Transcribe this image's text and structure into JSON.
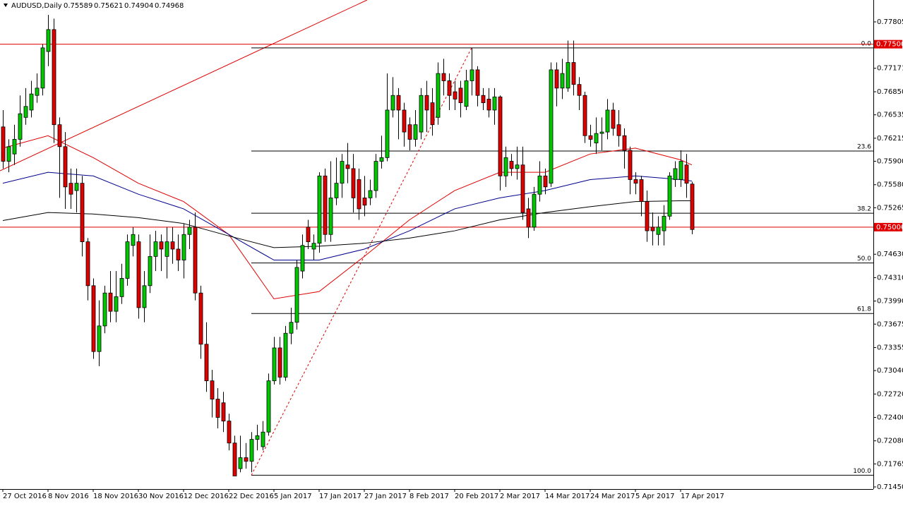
{
  "chart_data": {
    "type": "candlestick",
    "title": "AUDUSD,Daily",
    "quote": [
      0.75589,
      0.75621,
      0.74904,
      0.74968
    ],
    "up_color": "#00c800",
    "down_color": "#e00000",
    "categories": [
      "27 Oct 2016",
      null,
      null,
      null,
      null,
      null,
      null,
      null,
      "8 Nov 2016",
      null,
      null,
      null,
      null,
      null,
      null,
      null,
      "18 Nov 2016",
      null,
      null,
      null,
      null,
      null,
      null,
      null,
      "30 Nov 2016",
      null,
      null,
      null,
      null,
      null,
      null,
      null,
      "12 Dec 2016",
      null,
      null,
      null,
      null,
      null,
      null,
      null,
      "22 Dec 2016",
      null,
      null,
      null,
      null,
      null,
      null,
      null,
      "5 Jan 2017",
      null,
      null,
      null,
      null,
      null,
      null,
      null,
      "17 Jan 2017",
      null,
      null,
      null,
      null,
      null,
      null,
      null,
      "27 Jan 2017",
      null,
      null,
      null,
      null,
      null,
      null,
      null,
      "8 Feb 2017",
      null,
      null,
      null,
      null,
      null,
      null,
      null,
      "20 Feb 2017",
      null,
      null,
      null,
      null,
      null,
      null,
      null,
      "2 Mar 2017",
      null,
      null,
      null,
      null,
      null,
      null,
      null,
      "14 Mar 2017",
      null,
      null,
      null,
      null,
      null,
      null,
      null,
      "24 Mar 2017",
      null,
      null,
      null,
      null,
      null,
      null,
      null,
      "5 Apr 2017",
      null,
      null,
      null,
      null,
      null,
      null,
      null,
      "17 Apr 2017",
      null,
      null
    ],
    "open": [
      0.7637,
      0.759,
      0.76,
      0.762,
      0.765,
      0.766,
      0.768,
      0.769,
      0.774,
      0.777,
      0.764,
      0.761,
      0.756,
      0.755,
      0.756,
      0.748,
      0.742,
      0.733,
      0.7365,
      0.741,
      0.7385,
      0.7405,
      0.743,
      0.7475,
      0.748,
      0.739,
      0.742,
      0.746,
      0.748,
      0.746,
      0.748,
      0.747,
      0.7455,
      0.749,
      0.75,
      0.741,
      0.734,
      0.729,
      0.7265,
      0.726,
      0.7235,
      0.7205,
      0.717,
      0.7185,
      0.718,
      0.721,
      0.72,
      0.722,
      0.729,
      0.7335,
      0.7295,
      0.7355,
      0.737,
      0.744,
      0.75,
      0.747,
      0.7478,
      0.757,
      0.749,
      0.754,
      0.756,
      0.7585,
      0.758,
      0.7565,
      0.754,
      0.754,
      0.755,
      0.759,
      0.7595,
      0.766,
      0.768,
      0.766,
      0.764,
      0.762,
      0.763,
      0.768,
      0.767,
      0.765,
      0.771,
      0.77,
      0.7685,
      0.769,
      0.7665,
      0.77,
      0.7715,
      0.768,
      0.7675,
      0.766,
      0.7678,
      0.757,
      0.759,
      0.758,
      0.7585,
      0.7525,
      0.75,
      0.7545,
      0.757,
      0.756,
      0.7715,
      0.769,
      0.769,
      0.7725,
      0.7695,
      0.768,
      0.7625,
      0.7615,
      0.7628,
      0.763,
      0.766,
      0.764,
      0.7625,
      0.7605,
      0.7565,
      0.7565,
      0.7535,
      0.75,
      0.749,
      0.7495,
      0.7515,
      0.7565,
      0.7565,
      0.7585,
      0.75589
    ],
    "high": [
      0.766,
      0.762,
      0.764,
      0.768,
      0.769,
      0.77,
      0.771,
      0.775,
      0.779,
      0.7785,
      0.765,
      0.763,
      0.758,
      0.758,
      0.757,
      0.7485,
      0.743,
      0.74,
      0.742,
      0.744,
      0.744,
      0.745,
      0.749,
      0.75,
      0.749,
      0.744,
      0.749,
      0.7495,
      0.749,
      0.75,
      0.75,
      0.749,
      0.7505,
      0.751,
      0.752,
      0.742,
      0.737,
      0.7305,
      0.728,
      0.7275,
      0.7245,
      0.7215,
      0.7215,
      0.7205,
      0.722,
      0.723,
      0.7235,
      0.73,
      0.735,
      0.735,
      0.7365,
      0.739,
      0.7455,
      0.749,
      0.751,
      0.749,
      0.7575,
      0.758,
      0.759,
      0.7595,
      0.76,
      0.7615,
      0.76,
      0.758,
      0.757,
      0.7565,
      0.76,
      0.7625,
      0.771,
      0.7705,
      0.769,
      0.767,
      0.765,
      0.766,
      0.769,
      0.77,
      0.769,
      0.7725,
      0.773,
      0.771,
      0.77,
      0.77,
      0.7715,
      0.7745,
      0.772,
      0.769,
      0.769,
      0.769,
      0.768,
      0.761,
      0.76,
      0.761,
      0.761,
      0.754,
      0.7555,
      0.759,
      0.758,
      0.7725,
      0.7725,
      0.773,
      0.7755,
      0.7755,
      0.7705,
      0.7685,
      0.764,
      0.765,
      0.765,
      0.7675,
      0.767,
      0.766,
      0.7635,
      0.761,
      0.7575,
      0.757,
      0.755,
      0.752,
      0.7515,
      0.753,
      0.7575,
      0.759,
      0.7605,
      0.76,
      0.75621
    ],
    "low": [
      0.758,
      0.7575,
      0.7585,
      0.761,
      0.764,
      0.765,
      0.767,
      0.768,
      0.772,
      0.7615,
      0.754,
      0.7525,
      0.7525,
      0.752,
      0.746,
      0.74,
      0.732,
      0.731,
      0.7355,
      0.737,
      0.737,
      0.7395,
      0.742,
      0.746,
      0.7375,
      0.737,
      0.741,
      0.744,
      0.744,
      0.743,
      0.745,
      0.744,
      0.743,
      0.747,
      0.74,
      0.732,
      0.7275,
      0.724,
      0.7225,
      0.722,
      0.7195,
      0.716,
      0.7165,
      0.717,
      0.7165,
      0.7195,
      0.7195,
      0.7215,
      0.7285,
      0.7285,
      0.729,
      0.734,
      0.736,
      0.743,
      0.747,
      0.7455,
      0.7465,
      0.748,
      0.748,
      0.753,
      0.754,
      0.756,
      0.752,
      0.751,
      0.7515,
      0.753,
      0.754,
      0.758,
      0.759,
      0.765,
      0.762,
      0.761,
      0.7605,
      0.761,
      0.762,
      0.763,
      0.7625,
      0.764,
      0.768,
      0.766,
      0.766,
      0.765,
      0.766,
      0.768,
      0.7665,
      0.766,
      0.765,
      0.764,
      0.755,
      0.7555,
      0.757,
      0.7565,
      0.751,
      0.7485,
      0.7495,
      0.7535,
      0.7545,
      0.7555,
      0.7665,
      0.7675,
      0.7685,
      0.768,
      0.766,
      0.7615,
      0.761,
      0.76,
      0.7605,
      0.762,
      0.7625,
      0.761,
      0.758,
      0.7545,
      0.7545,
      0.7515,
      0.748,
      0.7475,
      0.7475,
      0.7475,
      0.751,
      0.7555,
      0.7555,
      0.754,
      0.74904
    ],
    "close": [
      0.759,
      0.761,
      0.762,
      0.7655,
      0.7665,
      0.7682,
      0.769,
      0.7745,
      0.777,
      0.764,
      0.761,
      0.7555,
      0.7545,
      0.756,
      0.748,
      0.742,
      0.733,
      0.7365,
      0.741,
      0.7385,
      0.7405,
      0.743,
      0.748,
      0.749,
      0.739,
      0.742,
      0.746,
      0.748,
      0.747,
      0.748,
      0.747,
      0.7455,
      0.749,
      0.75,
      0.741,
      0.734,
      0.729,
      0.7265,
      0.724,
      0.7235,
      0.7205,
      0.716,
      0.7185,
      0.718,
      0.721,
      0.7215,
      0.722,
      0.729,
      0.7335,
      0.7295,
      0.7355,
      0.737,
      0.7445,
      0.7475,
      0.748,
      0.7478,
      0.757,
      0.749,
      0.754,
      0.756,
      0.759,
      0.758,
      0.754,
      0.7525,
      0.753,
      0.755,
      0.759,
      0.7595,
      0.766,
      0.768,
      0.766,
      0.763,
      0.762,
      0.764,
      0.768,
      0.766,
      0.764,
      0.771,
      0.77,
      0.768,
      0.7675,
      0.767,
      0.77,
      0.7715,
      0.768,
      0.767,
      0.766,
      0.7678,
      0.757,
      0.7595,
      0.758,
      0.7585,
      0.752,
      0.75,
      0.7545,
      0.757,
      0.7555,
      0.7715,
      0.769,
      0.771,
      0.7725,
      0.7695,
      0.768,
      0.7625,
      0.762,
      0.7628,
      0.763,
      0.766,
      0.7635,
      0.7625,
      0.7605,
      0.7565,
      0.756,
      0.7535,
      0.7495,
      0.7495,
      0.75,
      0.7515,
      0.757,
      0.758,
      0.759,
      0.756,
      0.74968
    ],
    "overlays": [
      {
        "color": "#e00000",
        "x": [
          0,
          8,
          16,
          24,
          32,
          40,
          48,
          56,
          64,
          72,
          80,
          88,
          96,
          104,
          112,
          120,
          122
        ],
        "values": [
          0.7608,
          0.7625,
          0.7595,
          0.756,
          0.7535,
          0.749,
          0.7402,
          0.7412,
          0.746,
          0.751,
          0.755,
          0.7575,
          0.7575,
          0.76,
          0.7608,
          0.7592,
          0.7585
        ]
      },
      {
        "color": "#00008c",
        "x": [
          0,
          8,
          16,
          24,
          32,
          40,
          48,
          56,
          64,
          72,
          80,
          88,
          96,
          104,
          112,
          120,
          122
        ],
        "values": [
          0.756,
          0.7575,
          0.757,
          0.7545,
          0.7525,
          0.749,
          0.7455,
          0.7455,
          0.747,
          0.7495,
          0.7525,
          0.754,
          0.755,
          0.7565,
          0.757,
          0.7565,
          0.7563
        ]
      },
      {
        "color": "#000000",
        "x": [
          0,
          8,
          16,
          24,
          32,
          40,
          48,
          56,
          64,
          72,
          80,
          88,
          96,
          104,
          112,
          120,
          122
        ],
        "values": [
          0.7509,
          0.752,
          0.7518,
          0.7513,
          0.7505,
          0.7488,
          0.7472,
          0.7474,
          0.7478,
          0.7485,
          0.7495,
          0.751,
          0.752,
          0.7528,
          0.7535,
          0.7536,
          0.7536
        ]
      }
    ],
    "hlines": {
      "color": "#e00000",
      "values": [
        0.775,
        0.75
      ],
      "value_labels": [
        "0.77500",
        "0.75000"
      ]
    },
    "fib_levels": {
      "labels": [
        "0.0",
        "23.6",
        "38.2",
        "50.0",
        "61.8",
        "100.0"
      ],
      "values": [
        0.7745,
        0.7604,
        0.7519,
        0.7451,
        0.7382,
        0.7161
      ]
    },
    "ylim": [
      0.71421,
      0.78104
    ],
    "yticks": [
      0.77805,
      0.77171,
      {
        "value": 0.7685,
        "label": "0.76850"
      },
      0.76535,
      0.76215,
      {
        "value": 0.759,
        "label": "0.75900"
      },
      {
        "value": 0.7558,
        "label": "0.75580"
      },
      0.75265,
      {
        "value": 0.7463,
        "label": "0.74630"
      },
      {
        "value": 0.7431,
        "label": "0.74310"
      },
      {
        "value": 0.7399,
        "label": "0.73990"
      },
      0.73675,
      0.73355,
      {
        "value": 0.7304,
        "label": "0.73040"
      },
      {
        "value": 0.7272,
        "label": "0.72720"
      },
      {
        "value": 0.724,
        "label": "0.72400"
      },
      {
        "value": 0.7208,
        "label": "0.72080"
      },
      0.71765,
      {
        "value": 0.7145,
        "label": "0.71450"
      }
    ]
  }
}
